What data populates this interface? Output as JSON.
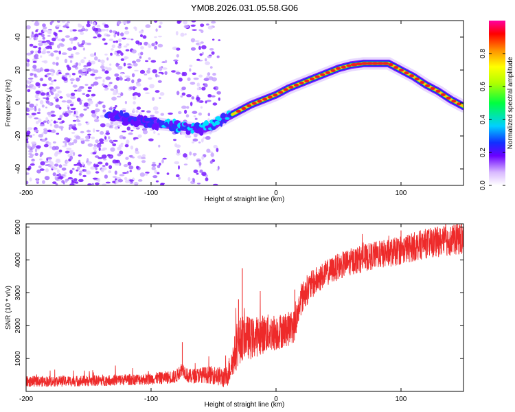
{
  "title": "YM08.2026.031.05.58.G06",
  "chart_data": [
    {
      "type": "heatmap",
      "name": "spectrogram",
      "xlabel": "Height of straight line (km)",
      "ylabel": "Frequency (Hz)",
      "xlim": [
        -200,
        150
      ],
      "ylim": [
        -50,
        50
      ],
      "xticks": [
        -200,
        -100,
        0,
        100
      ],
      "yticks": [
        -40,
        -20,
        0,
        20,
        40
      ],
      "ridge": {
        "x": [
          -130,
          -110,
          -100,
          -90,
          -80,
          -70,
          -60,
          -50,
          -45,
          -40,
          -35,
          -30,
          -20,
          -10,
          0,
          10,
          20,
          30,
          40,
          50,
          60,
          70,
          80,
          90,
          100,
          110,
          120,
          130,
          140,
          150
        ],
        "y": [
          -8,
          -11,
          -12,
          -13,
          -14,
          -15,
          -16,
          -14,
          -11,
          -9,
          -7,
          -5,
          -1,
          2,
          5,
          9,
          12,
          15,
          18,
          21,
          23,
          24,
          24,
          24,
          20,
          16,
          11,
          7,
          2,
          -2
        ]
      },
      "noise_region_x": [
        -200,
        -45
      ],
      "colorbar": {
        "label": "Normalized spectral amplitude",
        "ticks": [
          0.0,
          0.2,
          0.4,
          0.6,
          0.8
        ],
        "range": [
          0,
          1
        ]
      }
    },
    {
      "type": "line",
      "name": "snr",
      "xlabel": "Height of straight line (km)",
      "ylabel": "SNR (10 * v/v)",
      "xlim": [
        -200,
        150
      ],
      "ylim": [
        0,
        5100
      ],
      "xticks": [
        -200,
        -100,
        0,
        100
      ],
      "yticks": [
        1000,
        2000,
        3000,
        4000,
        5000
      ],
      "color": "#ee2a2a",
      "trend": {
        "x": [
          -200,
          -150,
          -100,
          -80,
          -75,
          -70,
          -60,
          -50,
          -40,
          -35,
          -30,
          -25,
          -20,
          -10,
          0,
          10,
          15,
          20,
          25,
          30,
          40,
          50,
          60,
          70,
          80,
          90,
          100,
          110,
          120,
          130,
          140,
          150
        ],
        "y": [
          300,
          320,
          380,
          450,
          700,
          450,
          500,
          500,
          400,
          900,
          1500,
          1700,
          1600,
          1750,
          1800,
          1900,
          2000,
          2800,
          3100,
          3300,
          3600,
          3800,
          3950,
          4050,
          4150,
          4200,
          4300,
          4400,
          4500,
          4550,
          4600,
          4650
        ]
      },
      "spikes": [
        {
          "x": -75,
          "y": 1500
        },
        {
          "x": -27,
          "y": 3750
        },
        {
          "x": -30,
          "y": 2800
        },
        {
          "x": 15,
          "y": 3100
        },
        {
          "x": 100,
          "y": 4900
        },
        {
          "x": 145,
          "y": 5000
        }
      ],
      "noise_amplitude": {
        "x": [
          -200,
          -100,
          -60,
          -40,
          -30,
          -20,
          0,
          20,
          40,
          100,
          150
        ],
        "y": [
          200,
          220,
          300,
          400,
          900,
          800,
          700,
          600,
          500,
          550,
          600
        ]
      }
    }
  ],
  "colors": {
    "line": "#ee2a2a",
    "noise": "#a060ff"
  }
}
